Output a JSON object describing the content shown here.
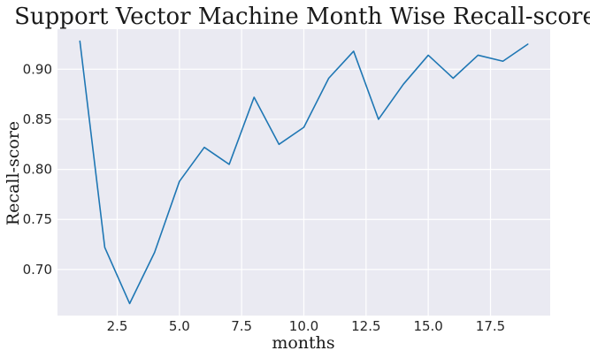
{
  "chart_data": {
    "type": "line",
    "title": "Support Vector Machine Month Wise Recall-score",
    "xlabel": "months",
    "ylabel": "Recall-score",
    "xlim": [
      0.1,
      19.9
    ],
    "ylim": [
      0.654,
      0.94
    ],
    "xticks": [
      2.5,
      5.0,
      7.5,
      10.0,
      12.5,
      15.0,
      17.5
    ],
    "xtick_labels": [
      "2.5",
      "5.0",
      "7.5",
      "10.0",
      "12.5",
      "15.0",
      "17.5"
    ],
    "yticks": [
      0.7,
      0.75,
      0.8,
      0.85,
      0.9
    ],
    "ytick_labels": [
      "0.70",
      "0.75",
      "0.80",
      "0.85",
      "0.90"
    ],
    "grid": true,
    "colors": {
      "background": "#eaeaf2",
      "grid": "#ffffff",
      "line": "#1f77b4"
    },
    "series": [
      {
        "x": [
          1,
          2,
          3,
          4,
          5,
          6,
          7,
          8,
          9,
          10,
          11,
          12,
          13,
          14,
          15,
          16,
          17,
          18,
          19
        ],
        "values": [
          0.928,
          0.722,
          0.666,
          0.717,
          0.788,
          0.822,
          0.805,
          0.872,
          0.825,
          0.842,
          0.891,
          0.918,
          0.85,
          0.885,
          0.914,
          0.891,
          0.914,
          0.908,
          0.925
        ]
      }
    ]
  }
}
